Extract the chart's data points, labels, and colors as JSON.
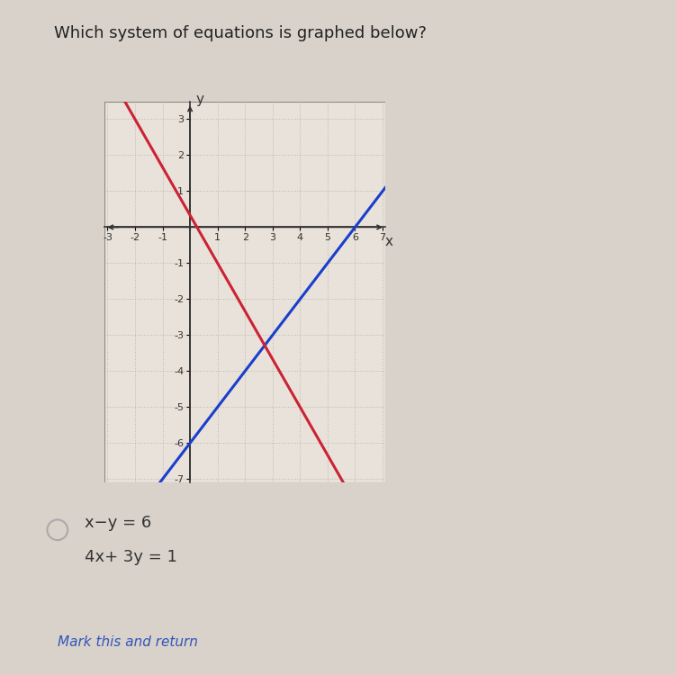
{
  "title": "Which system of equations is graphed below?",
  "title_fontsize": 13,
  "title_color": "#222222",
  "bg_color": "#d8d2ca",
  "graph_bg_color": "#e8e2da",
  "xmin": -3,
  "xmax": 7,
  "ymin": -7,
  "ymax": 3,
  "blue_line_color": "#1a3fcc",
  "red_line_color": "#cc2233",
  "line_width": 2.2,
  "answer_circle_color": "#aaaaaa",
  "answer_label1": "x−y = 6",
  "answer_label2": "4x+ 3y = 1",
  "answer_fontsize": 13,
  "link_text": "Mark this and return",
  "link_color": "#3355bb",
  "link_fontsize": 11,
  "xlabel": "x",
  "ylabel": "y",
  "tick_fontsize": 8,
  "axis_label_fontsize": 11,
  "grid_color": "#aaa899",
  "grid_alpha": 0.7,
  "spine_color": "#333333",
  "spine_lw": 1.2
}
